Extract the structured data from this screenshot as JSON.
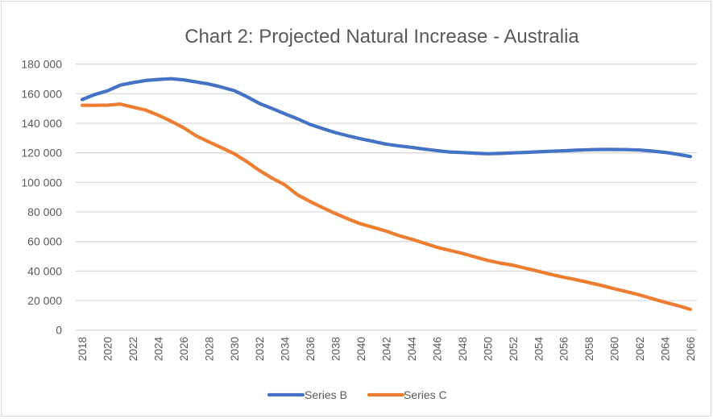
{
  "chart_data": {
    "type": "line",
    "title": "Chart 2: Projected Natural Increase - Australia",
    "xlabel": "",
    "ylabel": "",
    "ylim": [
      0,
      180000
    ],
    "xlim": [
      2018,
      2066
    ],
    "grid": true,
    "legend_position": "bottom",
    "y_ticks": [
      0,
      20000,
      40000,
      60000,
      80000,
      100000,
      120000,
      140000,
      160000,
      180000
    ],
    "y_tick_labels": [
      "0",
      "20 000",
      "40 000",
      "60 000",
      "80 000",
      "100 000",
      "120 000",
      "140 000",
      "160 000",
      "180 000"
    ],
    "x_tick_labels": [
      "2018",
      "2020",
      "2022",
      "2024",
      "2026",
      "2028",
      "2030",
      "2032",
      "2034",
      "2036",
      "2038",
      "2040",
      "2042",
      "2044",
      "2046",
      "2048",
      "2050",
      "2052",
      "2054",
      "2056",
      "2058",
      "2060",
      "2062",
      "2064",
      "2066"
    ],
    "x": [
      2018,
      2019,
      2020,
      2021,
      2022,
      2023,
      2024,
      2025,
      2026,
      2027,
      2028,
      2029,
      2030,
      2031,
      2032,
      2033,
      2034,
      2035,
      2036,
      2037,
      2038,
      2039,
      2040,
      2041,
      2042,
      2043,
      2044,
      2045,
      2046,
      2047,
      2048,
      2049,
      2050,
      2051,
      2052,
      2053,
      2054,
      2055,
      2056,
      2057,
      2058,
      2059,
      2060,
      2061,
      2062,
      2063,
      2064,
      2065,
      2066
    ],
    "series": [
      {
        "name": "Series B",
        "color": "#4472c4",
        "values": [
          156100,
          159500,
          162000,
          165800,
          167500,
          169000,
          169700,
          170200,
          169400,
          168000,
          166600,
          164500,
          162100,
          158000,
          153400,
          150000,
          146400,
          143000,
          139200,
          136300,
          133700,
          131500,
          129500,
          127700,
          125900,
          124700,
          123700,
          122500,
          121500,
          120600,
          120200,
          119800,
          119400,
          119600,
          120000,
          120300,
          120700,
          121100,
          121400,
          121800,
          122100,
          122300,
          122300,
          122200,
          121900,
          121200,
          120300,
          119000,
          117500
        ]
      },
      {
        "name": "Series C",
        "color": "#ed7d31",
        "values": [
          152200,
          152200,
          152300,
          153000,
          151000,
          149000,
          145500,
          141500,
          137000,
          131500,
          127400,
          123500,
          119400,
          114000,
          108000,
          102800,
          98300,
          91500,
          87000,
          82800,
          78800,
          75200,
          71900,
          69500,
          67000,
          64000,
          61500,
          58800,
          56100,
          54000,
          51900,
          49500,
          47200,
          45400,
          43900,
          41900,
          39800,
          37700,
          35800,
          34100,
          32200,
          30200,
          28000,
          25900,
          23800,
          21300,
          18800,
          16600,
          14000
        ]
      }
    ]
  }
}
